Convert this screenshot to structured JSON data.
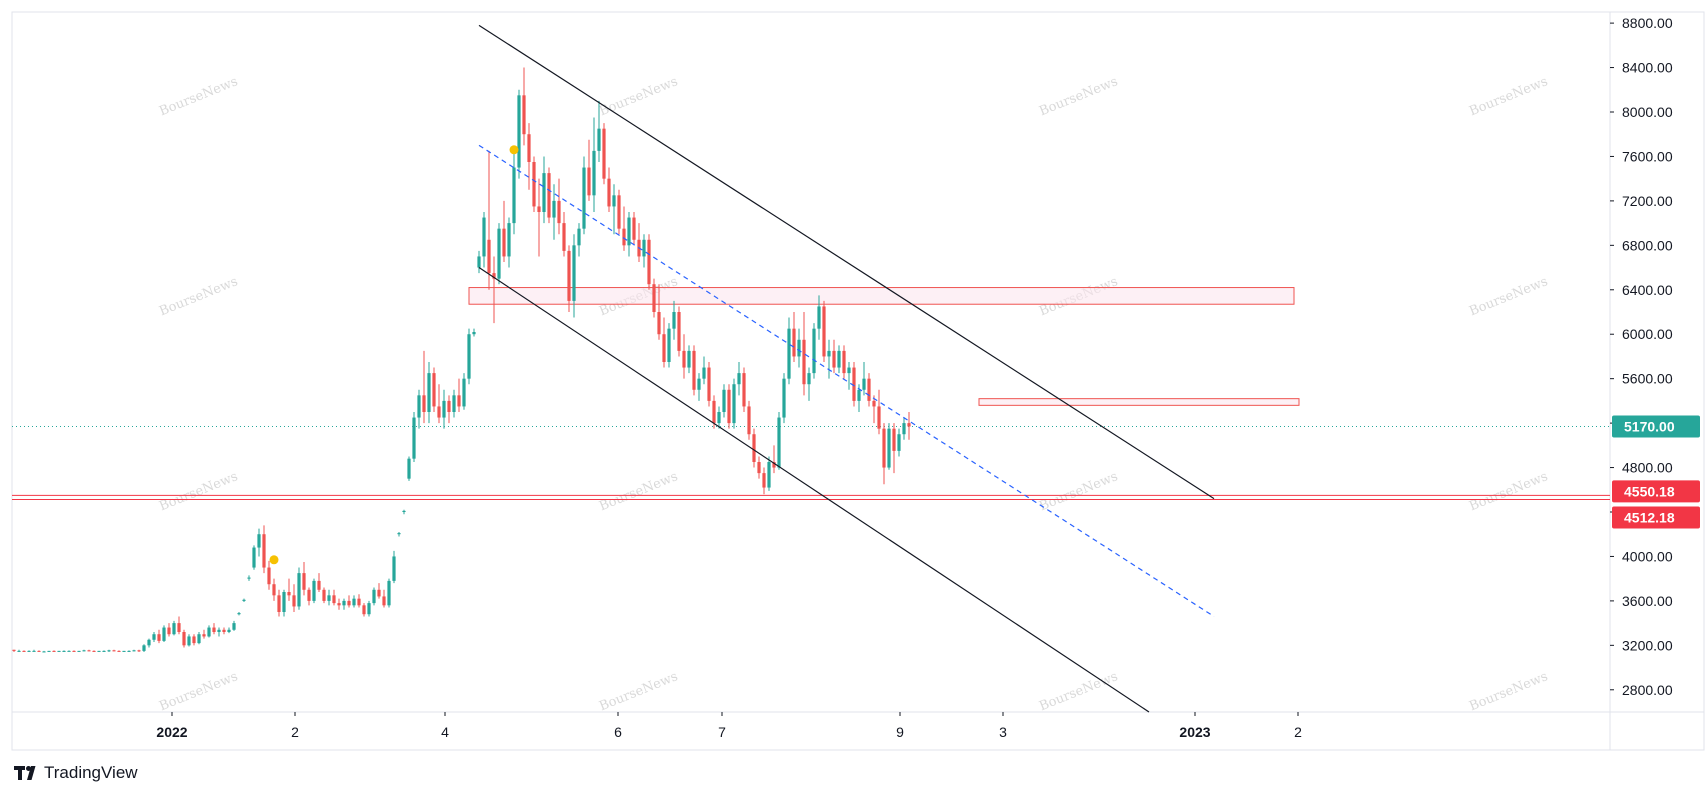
{
  "brand": {
    "name": "TradingView",
    "icon": "tradingview-logo-icon"
  },
  "watermark": "BourseNews",
  "colors": {
    "up": "#26a69a",
    "down": "#ef5350",
    "grid_border": "#e0e3eb",
    "channel": "#131722",
    "midline": "#2962ff",
    "zone_fill": "#fce4ec",
    "zone_border": "#ef5350",
    "current_line": "#26a69a",
    "support_line": "#f23645",
    "dot": "#f6c102"
  },
  "chart_data": {
    "type": "candlestick",
    "title": "",
    "xlabel": "",
    "ylabel": "",
    "ylim": [
      2600,
      8900
    ],
    "price_ticks": [
      2800,
      3200,
      3600,
      4000,
      4400,
      4800,
      5200,
      5600,
      6000,
      6400,
      6800,
      7200,
      7600,
      8000,
      8400,
      8800
    ],
    "price_tick_labels": [
      "2800.00",
      "3200.00",
      "3600.00",
      "4000.00",
      "4400.00",
      "4800.00",
      "5200.00",
      "5600.00",
      "6000.00",
      "6400.00",
      "6800.00",
      "7200.00",
      "7600.00",
      "8000.00",
      "8400.00",
      "8800.00"
    ],
    "time_labels": [
      {
        "label": "2022",
        "bold": true,
        "bar": 0
      },
      {
        "label": "2",
        "bold": false,
        "bar": 1
      },
      {
        "label": "4",
        "bold": false,
        "bar": 2
      },
      {
        "label": "6",
        "bold": false,
        "bar": 3
      },
      {
        "label": "7",
        "bold": false,
        "bar": 4
      },
      {
        "label": "9",
        "bold": false,
        "bar": 5
      },
      {
        "label": "3",
        "bold": false,
        "bar": 6
      },
      {
        "label": "2023",
        "bold": true,
        "bar": 7
      },
      {
        "label": "2",
        "bold": false,
        "bar": 8
      }
    ],
    "time_label_slots": [
      172,
      295,
      445,
      618,
      722,
      900,
      1003,
      1195,
      1298
    ],
    "candles": [
      [
        3160,
        3160,
        3140,
        3150
      ],
      [
        3150,
        3160,
        3140,
        3150
      ],
      [
        3150,
        3155,
        3140,
        3145
      ],
      [
        3145,
        3155,
        3140,
        3150
      ],
      [
        3150,
        3160,
        3145,
        3150
      ],
      [
        3150,
        3155,
        3140,
        3145
      ],
      [
        3145,
        3150,
        3140,
        3145
      ],
      [
        3145,
        3150,
        3140,
        3150
      ],
      [
        3150,
        3155,
        3140,
        3145
      ],
      [
        3145,
        3150,
        3140,
        3150
      ],
      [
        3150,
        3155,
        3140,
        3150
      ],
      [
        3150,
        3155,
        3145,
        3150
      ],
      [
        3150,
        3155,
        3140,
        3145
      ],
      [
        3145,
        3150,
        3140,
        3150
      ],
      [
        3150,
        3160,
        3145,
        3155
      ],
      [
        3155,
        3160,
        3145,
        3150
      ],
      [
        3150,
        3155,
        3140,
        3145
      ],
      [
        3145,
        3150,
        3140,
        3150
      ],
      [
        3150,
        3155,
        3140,
        3150
      ],
      [
        3150,
        3160,
        3140,
        3155
      ],
      [
        3155,
        3160,
        3145,
        3150
      ],
      [
        3150,
        3155,
        3140,
        3145
      ],
      [
        3145,
        3150,
        3140,
        3150
      ],
      [
        3150,
        3155,
        3140,
        3150
      ],
      [
        3150,
        3160,
        3145,
        3155
      ],
      [
        3155,
        3160,
        3140,
        3150
      ],
      [
        3150,
        3210,
        3140,
        3200
      ],
      [
        3200,
        3260,
        3180,
        3250
      ],
      [
        3250,
        3320,
        3230,
        3300
      ],
      [
        3300,
        3340,
        3220,
        3240
      ],
      [
        3240,
        3380,
        3230,
        3360
      ],
      [
        3360,
        3400,
        3280,
        3300
      ],
      [
        3300,
        3420,
        3290,
        3400
      ],
      [
        3400,
        3460,
        3300,
        3320
      ],
      [
        3320,
        3340,
        3180,
        3200
      ],
      [
        3200,
        3300,
        3190,
        3280
      ],
      [
        3280,
        3300,
        3200,
        3220
      ],
      [
        3220,
        3320,
        3210,
        3300
      ],
      [
        3300,
        3340,
        3260,
        3280
      ],
      [
        3280,
        3380,
        3270,
        3360
      ],
      [
        3360,
        3400,
        3300,
        3320
      ],
      [
        3320,
        3360,
        3280,
        3340
      ],
      [
        3340,
        3360,
        3300,
        3320
      ],
      [
        3320,
        3360,
        3310,
        3340
      ],
      [
        3340,
        3420,
        3330,
        3400
      ],
      [
        3480,
        3500,
        3470,
        3490
      ],
      [
        3600,
        3620,
        3590,
        3610
      ],
      [
        3800,
        3830,
        3780,
        3810
      ],
      [
        3900,
        4100,
        3880,
        4080
      ],
      [
        4080,
        4250,
        4000,
        4200
      ],
      [
        4200,
        4280,
        3850,
        3900
      ],
      [
        3900,
        3960,
        3700,
        3750
      ],
      [
        3750,
        3800,
        3600,
        3650
      ],
      [
        3650,
        3700,
        3460,
        3500
      ],
      [
        3500,
        3700,
        3460,
        3680
      ],
      [
        3680,
        3800,
        3600,
        3650
      ],
      [
        3650,
        3750,
        3500,
        3550
      ],
      [
        3550,
        3900,
        3520,
        3850
      ],
      [
        3850,
        3950,
        3650,
        3700
      ],
      [
        3700,
        3720,
        3560,
        3600
      ],
      [
        3600,
        3800,
        3580,
        3780
      ],
      [
        3780,
        3850,
        3680,
        3700
      ],
      [
        3700,
        3720,
        3580,
        3600
      ],
      [
        3600,
        3700,
        3560,
        3650
      ],
      [
        3650,
        3700,
        3560,
        3580
      ],
      [
        3580,
        3620,
        3520,
        3560
      ],
      [
        3560,
        3620,
        3520,
        3600
      ],
      [
        3600,
        3650,
        3540,
        3560
      ],
      [
        3560,
        3650,
        3540,
        3620
      ],
      [
        3620,
        3660,
        3540,
        3560
      ],
      [
        3560,
        3580,
        3460,
        3480
      ],
      [
        3480,
        3600,
        3460,
        3580
      ],
      [
        3580,
        3720,
        3560,
        3700
      ],
      [
        3700,
        3760,
        3620,
        3640
      ],
      [
        3640,
        3700,
        3540,
        3560
      ],
      [
        3560,
        3800,
        3540,
        3780
      ],
      [
        3780,
        4050,
        3760,
        4000
      ],
      [
        4200,
        4220,
        4180,
        4210
      ],
      [
        4400,
        4420,
        4380,
        4410
      ],
      [
        4700,
        4900,
        4680,
        4880
      ],
      [
        4880,
        5300,
        4850,
        5250
      ],
      [
        5250,
        5500,
        5150,
        5450
      ],
      [
        5450,
        5850,
        5200,
        5300
      ],
      [
        5300,
        5750,
        5200,
        5650
      ],
      [
        5650,
        5700,
        5300,
        5350
      ],
      [
        5350,
        5550,
        5200,
        5250
      ],
      [
        5250,
        5500,
        5150,
        5400
      ],
      [
        5400,
        5450,
        5200,
        5300
      ],
      [
        5300,
        5500,
        5250,
        5450
      ],
      [
        5450,
        5600,
        5300,
        5350
      ],
      [
        5350,
        5650,
        5320,
        5600
      ],
      [
        5600,
        6050,
        5550,
        6000
      ],
      [
        6000,
        6050,
        5980,
        6020
      ],
      [
        6600,
        6750,
        6550,
        6700
      ],
      [
        6700,
        7100,
        6600,
        7050
      ],
      [
        6850,
        7650,
        6400,
        6550
      ],
      [
        6550,
        6700,
        6100,
        6500
      ],
      [
        6500,
        7000,
        6450,
        6950
      ],
      [
        6950,
        7200,
        6650,
        6700
      ],
      [
        6700,
        7050,
        6600,
        7000
      ],
      [
        7000,
        7650,
        6900,
        7500
      ],
      [
        7500,
        8200,
        7400,
        8150
      ],
      [
        8150,
        8400,
        7700,
        7800
      ],
      [
        7800,
        7900,
        7300,
        7550
      ],
      [
        7550,
        7600,
        7100,
        7150
      ],
      [
        7150,
        7400,
        6700,
        7100
      ],
      [
        7100,
        7600,
        7000,
        7450
      ],
      [
        7450,
        7500,
        7000,
        7050
      ],
      [
        7050,
        7350,
        6850,
        7200
      ],
      [
        7200,
        7400,
        6900,
        7000
      ],
      [
        7000,
        7100,
        6700,
        6750
      ],
      [
        6750,
        6800,
        6200,
        6300
      ],
      [
        6300,
        6900,
        6150,
        6800
      ],
      [
        6800,
        7000,
        6700,
        6950
      ],
      [
        6950,
        7600,
        6900,
        7500
      ],
      [
        7500,
        7750,
        7200,
        7250
      ],
      [
        7250,
        7950,
        7100,
        7650
      ],
      [
        7650,
        8100,
        7550,
        7850
      ],
      [
        7850,
        7900,
        7350,
        7400
      ],
      [
        7400,
        7500,
        7100,
        7150
      ],
      [
        7150,
        7350,
        6900,
        7250
      ],
      [
        7250,
        7300,
        6900,
        6950
      ],
      [
        6950,
        7150,
        6750,
        6800
      ],
      [
        6800,
        7100,
        6700,
        7050
      ],
      [
        7050,
        7100,
        6800,
        6850
      ],
      [
        6850,
        7000,
        6650,
        6700
      ],
      [
        6700,
        6900,
        6600,
        6850
      ],
      [
        6850,
        6900,
        6400,
        6450
      ],
      [
        6450,
        6500,
        6150,
        6200
      ],
      [
        6200,
        6450,
        5950,
        6000
      ],
      [
        6000,
        6150,
        5700,
        5750
      ],
      [
        5750,
        6100,
        5700,
        6050
      ],
      [
        6050,
        6300,
        5950,
        6200
      ],
      [
        6200,
        6250,
        5800,
        5850
      ],
      [
        5850,
        6000,
        5600,
        5700
      ],
      [
        5700,
        5900,
        5650,
        5850
      ],
      [
        5850,
        5900,
        5450,
        5500
      ],
      [
        5500,
        5650,
        5400,
        5600
      ],
      [
        5600,
        5800,
        5550,
        5700
      ],
      [
        5700,
        5750,
        5350,
        5400
      ],
      [
        5400,
        5450,
        5150,
        5200
      ],
      [
        5200,
        5350,
        5150,
        5300
      ],
      [
        5300,
        5550,
        5250,
        5500
      ],
      [
        5500,
        5550,
        5150,
        5200
      ],
      [
        5200,
        5600,
        5150,
        5550
      ],
      [
        5550,
        5750,
        5450,
        5650
      ],
      [
        5650,
        5700,
        5300,
        5350
      ],
      [
        5350,
        5400,
        5050,
        5100
      ],
      [
        5100,
        5150,
        4800,
        4850
      ],
      [
        4850,
        4900,
        4700,
        4750
      ],
      [
        4750,
        4800,
        4560,
        4620
      ],
      [
        4620,
        4900,
        4590,
        4850
      ],
      [
        4850,
        5000,
        4750,
        4800
      ],
      [
        4800,
        5300,
        4780,
        5250
      ],
      [
        5250,
        5650,
        5200,
        5600
      ],
      [
        5600,
        6150,
        5550,
        6050
      ],
      [
        6050,
        6200,
        5750,
        5800
      ],
      [
        5800,
        6050,
        5700,
        5950
      ],
      [
        5950,
        6200,
        5450,
        5550
      ],
      [
        5550,
        5700,
        5400,
        5650
      ],
      [
        5650,
        6100,
        5600,
        6050
      ],
      [
        6050,
        6350,
        5950,
        6250
      ],
      [
        6250,
        6300,
        5750,
        5800
      ],
      [
        5800,
        5950,
        5600,
        5850
      ],
      [
        5850,
        5950,
        5650,
        5700
      ],
      [
        5700,
        5900,
        5650,
        5850
      ],
      [
        5850,
        5900,
        5600,
        5650
      ],
      [
        5650,
        5750,
        5500,
        5700
      ],
      [
        5700,
        5750,
        5350,
        5400
      ],
      [
        5400,
        5550,
        5300,
        5500
      ],
      [
        5500,
        5750,
        5450,
        5600
      ],
      [
        5600,
        5650,
        5350,
        5400
      ],
      [
        5400,
        5450,
        5200,
        5350
      ],
      [
        5350,
        5500,
        5100,
        5150
      ],
      [
        5150,
        5200,
        4650,
        4800
      ],
      [
        4800,
        5200,
        4780,
        5150
      ],
      [
        5150,
        5200,
        4750,
        4950
      ],
      [
        4950,
        5150,
        4900,
        5100
      ],
      [
        5100,
        5250,
        5050,
        5200
      ],
      [
        5200,
        5300,
        5050,
        5170
      ]
    ],
    "dots": [
      {
        "bar": 52,
        "price": 3970
      },
      {
        "bar": 100,
        "price": 7660
      }
    ],
    "channel": {
      "upper": {
        "from": {
          "bar": 93,
          "price": 8780
        },
        "to": {
          "bar": 240,
          "price": 4520
        }
      },
      "lower": {
        "from": {
          "bar": 93,
          "price": 6600
        },
        "to": {
          "bar": 227,
          "price": 2600
        }
      },
      "mid": {
        "from": {
          "bar": 93,
          "price": 7700
        },
        "to": {
          "bar": 240,
          "price": 3460
        }
      }
    },
    "zones": [
      {
        "bar_from": 91,
        "bar_to": 256,
        "price_top": 6420,
        "price_bottom": 6270
      },
      {
        "bar_from": 193,
        "bar_to": 257,
        "price_top": 5420,
        "price_bottom": 5360
      }
    ],
    "current_price": 5170,
    "current_price_label": "5170.00",
    "support_levels": [
      {
        "price": 4550.18,
        "label": "4550.18"
      },
      {
        "price": 4512.18,
        "label": "4512.18"
      }
    ]
  }
}
